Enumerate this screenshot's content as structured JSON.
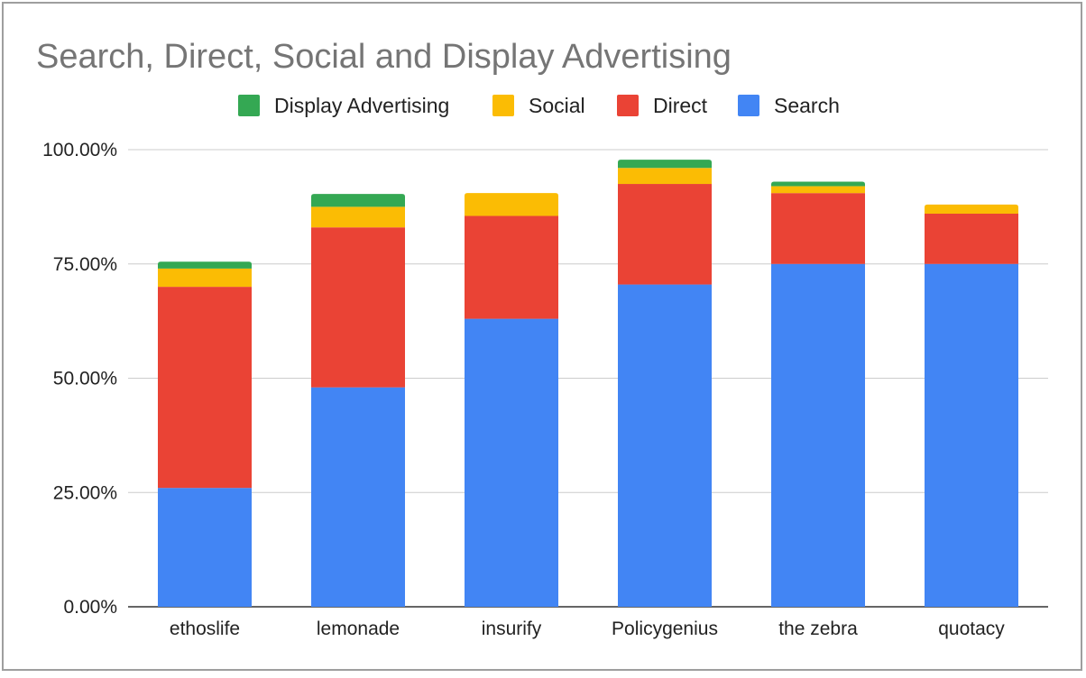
{
  "chart_data": {
    "type": "bar",
    "stacked": true,
    "title": "Search, Direct, Social and Display Advertising",
    "xlabel": "",
    "ylabel": "",
    "ylim": [
      0,
      1
    ],
    "yticks": [
      "0.00%",
      "25.00%",
      "50.00%",
      "75.00%",
      "100.00%"
    ],
    "ytick_values": [
      0,
      0.25,
      0.5,
      0.75,
      1.0
    ],
    "grid": true,
    "legend_position": "top",
    "categories": [
      "ethoslife",
      "lemonade",
      "insurify",
      "Policygenius",
      "the zebra",
      "quotacy"
    ],
    "legend": [
      "Display Advertising",
      "Social",
      "Direct",
      "Search"
    ],
    "series": [
      {
        "name": "Search",
        "color": "#4285f4",
        "values": [
          0.26,
          0.48,
          0.63,
          0.705,
          0.75,
          0.75
        ]
      },
      {
        "name": "Direct",
        "color": "#ea4335",
        "values": [
          0.44,
          0.35,
          0.225,
          0.22,
          0.155,
          0.11
        ]
      },
      {
        "name": "Social",
        "color": "#fbbc04",
        "values": [
          0.04,
          0.045,
          0.05,
          0.035,
          0.015,
          0.02
        ]
      },
      {
        "name": "Display Advertising",
        "color": "#34a853",
        "values": [
          0.015,
          0.028,
          0.0,
          0.018,
          0.01,
          0.0
        ]
      }
    ]
  }
}
